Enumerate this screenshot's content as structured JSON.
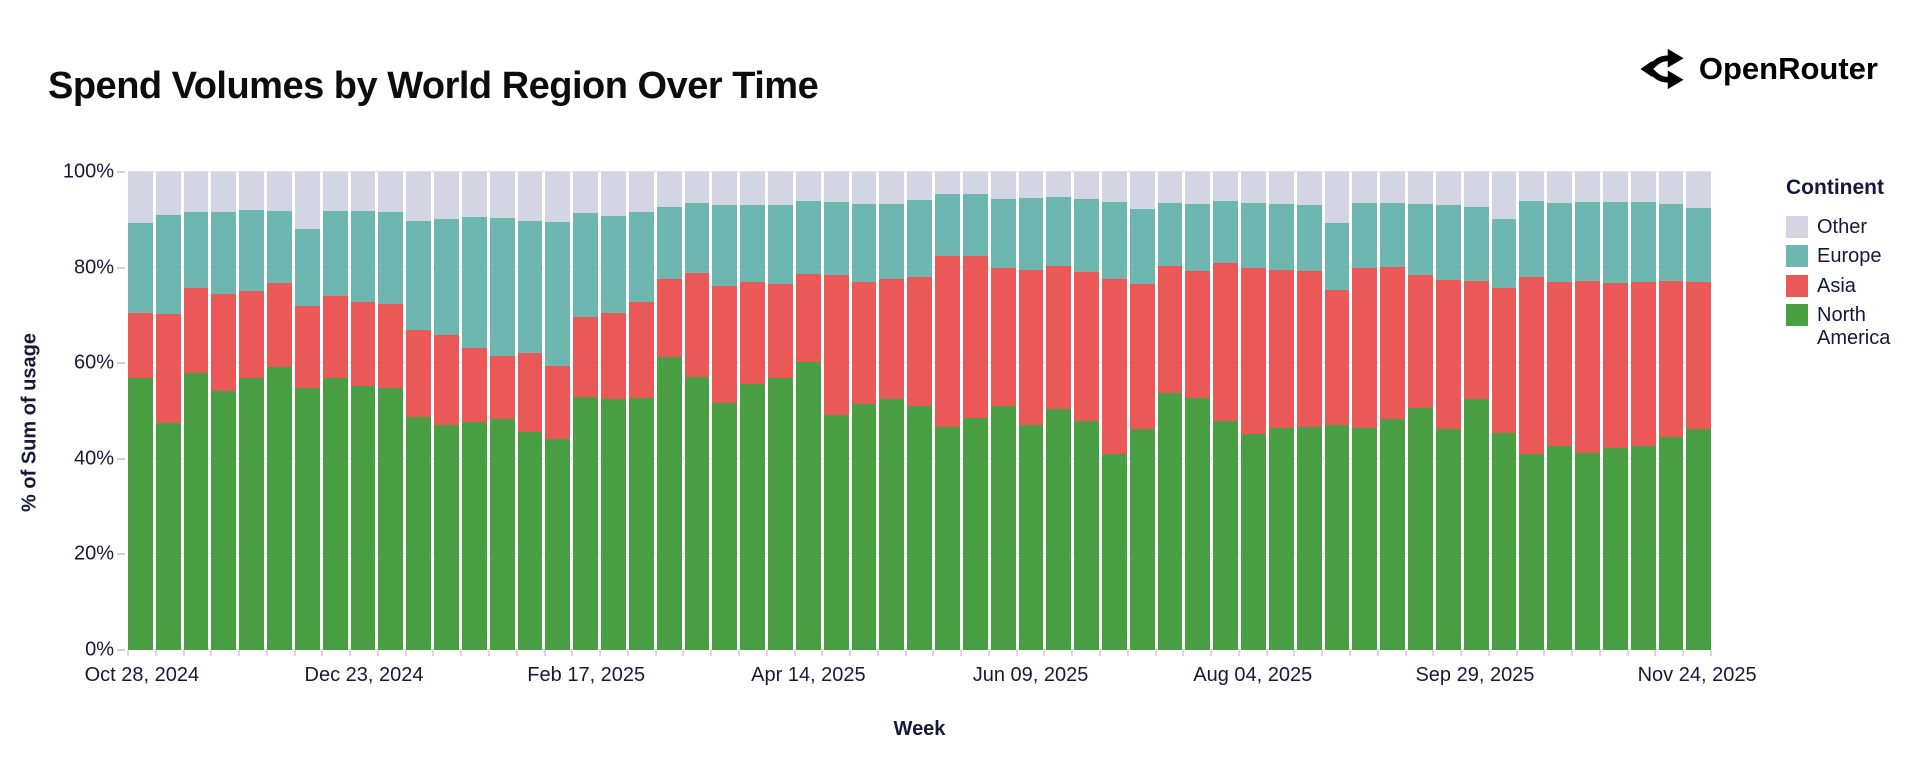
{
  "header": {
    "title": "Spend Volumes by World Region Over Time",
    "brand": "OpenRouter"
  },
  "colors": {
    "north_america": "#4a9e43",
    "asia": "#ea5857",
    "europe": "#6eb7b0",
    "other": "#d3d5e2",
    "text": "#16193b",
    "gridline": "#e3e4eb",
    "tick": "#d6d7df"
  },
  "chart_data": {
    "type": "bar",
    "stacked": true,
    "stack_unit": "percent",
    "title": "Spend Volumes by World Region Over Time",
    "xlabel": "Week",
    "ylabel": "% of Sum of usage",
    "ylim": [
      0,
      100
    ],
    "grid": true,
    "y_gridlines": [
      0,
      20,
      40,
      60,
      80,
      100
    ],
    "y_tick_suffix": "%",
    "x_tick_indices": [
      0,
      8,
      16,
      24,
      32,
      40,
      48,
      56
    ],
    "x_tick_labels": [
      "Oct 28, 2024",
      "Dec 23, 2024",
      "Feb 17, 2025",
      "Apr 14, 2025",
      "Jun 09, 2025",
      "Aug 04, 2025",
      "Sep 29, 2025",
      "Nov 24, 2025"
    ],
    "categories": [
      "Oct 28, 2024",
      "Nov 04, 2024",
      "Nov 11, 2024",
      "Nov 18, 2024",
      "Nov 25, 2024",
      "Dec 02, 2024",
      "Dec 09, 2024",
      "Dec 16, 2024",
      "Dec 23, 2024",
      "Dec 30, 2024",
      "Jan 06, 2025",
      "Jan 13, 2025",
      "Jan 20, 2025",
      "Jan 27, 2025",
      "Feb 03, 2025",
      "Feb 10, 2025",
      "Feb 17, 2025",
      "Feb 24, 2025",
      "Mar 03, 2025",
      "Mar 10, 2025",
      "Mar 17, 2025",
      "Mar 24, 2025",
      "Mar 31, 2025",
      "Apr 07, 2025",
      "Apr 14, 2025",
      "Apr 21, 2025",
      "Apr 28, 2025",
      "May 05, 2025",
      "May 12, 2025",
      "May 19, 2025",
      "May 26, 2025",
      "Jun 02, 2025",
      "Jun 09, 2025",
      "Jun 16, 2025",
      "Jun 23, 2025",
      "Jun 30, 2025",
      "Jul 07, 2025",
      "Jul 14, 2025",
      "Jul 21, 2025",
      "Jul 28, 2025",
      "Aug 04, 2025",
      "Aug 11, 2025",
      "Aug 18, 2025",
      "Aug 25, 2025",
      "Sep 01, 2025",
      "Sep 08, 2025",
      "Sep 15, 2025",
      "Sep 22, 2025",
      "Sep 29, 2025",
      "Oct 06, 2025",
      "Oct 13, 2025",
      "Oct 20, 2025",
      "Oct 27, 2025",
      "Nov 03, 2025",
      "Nov 10, 2025",
      "Nov 17, 2025",
      "Nov 24, 2025"
    ],
    "series": [
      {
        "name": "North America",
        "color": "#4a9e43",
        "values": [
          57.0,
          47.4,
          58.0,
          54.2,
          56.8,
          59.1,
          54.8,
          57.0,
          55.2,
          54.8,
          48.7,
          47.1,
          47.6,
          48.3,
          45.7,
          44.1,
          53.0,
          52.5,
          52.7,
          61.2,
          57.2,
          51.6,
          55.6,
          57.0,
          60.3,
          49.2,
          51.4,
          52.5,
          51.1,
          46.7,
          48.5,
          51.0,
          47.1,
          50.4,
          48.0,
          41.0,
          46.2,
          53.7,
          52.7,
          48.0,
          45.2,
          46.4,
          46.7,
          47.1,
          46.5,
          48.3,
          50.6,
          46.2,
          52.5,
          45.3,
          40.9,
          42.7,
          41.2,
          42.2,
          42.7,
          44.5,
          46.2
        ]
      },
      {
        "name": "Asia",
        "color": "#ea5857",
        "values": [
          13.4,
          22.8,
          17.7,
          20.2,
          18.4,
          17.7,
          17.2,
          17.1,
          17.5,
          17.5,
          18.2,
          18.9,
          15.6,
          13.1,
          16.4,
          15.3,
          16.7,
          18.1,
          20.2,
          16.4,
          21.6,
          24.6,
          21.3,
          19.5,
          18.3,
          29.3,
          25.5,
          25.1,
          27.0,
          35.8,
          34.0,
          28.9,
          32.5,
          29.9,
          31.0,
          36.7,
          30.4,
          26.6,
          26.5,
          32.9,
          34.7,
          33.1,
          32.5,
          28.2,
          33.4,
          31.9,
          27.9,
          31.2,
          24.6,
          30.5,
          37.2,
          34.2,
          35.9,
          34.5,
          34.2,
          32.7,
          30.7
        ]
      },
      {
        "name": "Europe",
        "color": "#6eb7b0",
        "values": [
          19.0,
          20.8,
          16.0,
          17.3,
          16.8,
          15.0,
          16.0,
          17.7,
          19.1,
          19.4,
          22.9,
          24.1,
          27.4,
          29.0,
          27.7,
          30.2,
          21.7,
          20.2,
          18.8,
          15.1,
          14.8,
          16.9,
          16.2,
          16.6,
          15.3,
          15.3,
          16.5,
          15.8,
          16.0,
          12.8,
          12.8,
          14.4,
          14.9,
          14.5,
          15.3,
          16.1,
          15.6,
          13.3,
          14.2,
          13.1,
          13.7,
          13.9,
          14.0,
          14.0,
          13.7,
          13.4,
          14.9,
          15.8,
          15.6,
          14.3,
          15.9,
          16.7,
          16.7,
          17.1,
          16.8,
          16.2,
          15.6
        ]
      },
      {
        "name": "Other",
        "color": "#d3d5e2",
        "values": [
          10.6,
          9.0,
          8.3,
          8.3,
          8.0,
          8.2,
          12.0,
          8.2,
          8.2,
          8.3,
          10.2,
          9.9,
          9.4,
          9.6,
          10.2,
          10.4,
          8.6,
          9.2,
          8.3,
          7.3,
          6.4,
          6.9,
          6.9,
          6.9,
          6.1,
          6.2,
          6.6,
          6.6,
          5.9,
          4.7,
          4.7,
          5.7,
          5.5,
          5.2,
          5.7,
          6.2,
          7.8,
          6.4,
          6.6,
          6.0,
          6.4,
          6.6,
          6.8,
          10.7,
          6.4,
          6.4,
          6.6,
          6.8,
          7.3,
          9.9,
          6.0,
          6.4,
          6.2,
          6.2,
          6.3,
          6.6,
          7.5
        ]
      }
    ],
    "legend": {
      "title": "Continent",
      "position": "right",
      "entries": [
        {
          "label": "Other",
          "color": "#d3d5e2"
        },
        {
          "label": "Europe",
          "color": "#6eb7b0"
        },
        {
          "label": "Asia",
          "color": "#ea5857"
        },
        {
          "label": "North America",
          "color": "#4a9e43"
        }
      ]
    }
  }
}
